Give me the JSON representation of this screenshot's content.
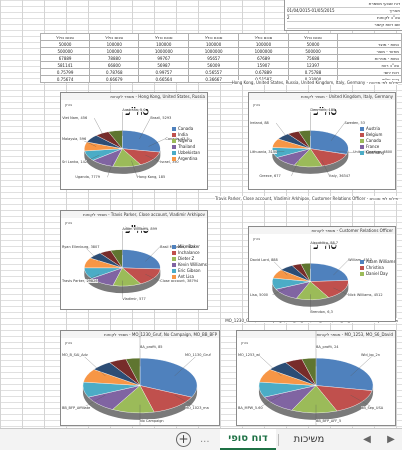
{
  "header": {
    "rows": [
      {
        "label": "דוח שבועי משמרת",
        "value": ""
      },
      {
        "label": "תאריך",
        "value": "01/04/2015-01/05/2015"
      },
      {
        "label": "סה\"כ לקוחות",
        "value": "2"
      },
      {
        "label": "שם רשת קישור",
        "value": ""
      }
    ]
  },
  "summary_table": {
    "columns": [
      "",
      "סכום כולל",
      "סכום כולל",
      "סכום כולל",
      "סכום כולל",
      "סכום כולל",
      "סכום כולל"
    ],
    "rows": [
      {
        "label": "כמות - מוצר",
        "values": [
          "50000",
          "100000",
          "100000",
          "100000",
          "100000",
          "50000"
        ]
      },
      {
        "label": "מחזור - מוצר",
        "values": [
          "500000",
          "1000000",
          "1000000",
          "1000000",
          "100000",
          "500000"
        ]
      },
      {
        "label": "כמות - מכירות",
        "values": [
          "75688",
          "67689",
          "95657",
          "99767",
          "78880",
          "67889"
        ]
      },
      {
        "label": "סה\"כ רווח",
        "values": [
          "12397",
          "15907",
          "56009",
          "56987",
          "66800",
          "581141"
        ]
      },
      {
        "label": "רווח יחסי",
        "values": [
          "0.75788",
          "0.67889",
          "0.56557",
          "0.99757",
          "0.78768",
          "0.75799"
        ]
      },
      {
        "label": "רווח גולמי",
        "values": [
          "0.33000",
          "0.51587",
          "0.36667",
          "0.66564",
          "0.66679",
          "0.75674"
        ]
      }
    ]
  },
  "sections": {
    "countries": "פילוח לפי מדינות - Hong Kong, United States, Russia, United Kingdom, Italy, Germany",
    "agents": "פילוח לפי סוכנים - Travis Parker, Close account, Vladimir Arkhipov, Customer Relations Officer",
    "campaigns": "פילוח לפי קמפיינים - MO_1230_Gruf, No Campaign, MO_BB_BFP, MO_1253, MO_S6_David"
  },
  "charts": [
    {
      "id": "c1",
      "title": "Hong Kong, United States, Russia - מספר לקוחות",
      "tag": "בוחן",
      "total": "סה\"כ",
      "legend": [
        "Canada",
        "India",
        "Nigeria",
        "Thailand",
        "Uzbekistan",
        "Argentina"
      ],
      "colors": [
        "#4f81bd",
        "#c0504d",
        "#9bbb59",
        "#8064a2",
        "#4bacc6",
        "#f79646",
        "#2c4d75",
        "#772c2a",
        "#5f7530"
      ],
      "slices": [
        28,
        14,
        12,
        10,
        9,
        8,
        7,
        6,
        6
      ],
      "callouts": [
        "Australia, 5,0",
        "Brazil, 5293",
        "Canada, 43,5",
        "Israel, 350",
        "Hong Kong, 185",
        "Uganda, 7779",
        "Sri Lanka, 142",
        "Malaysia, 596",
        "Viet Nam, 456"
      ]
    },
    {
      "id": "c2",
      "title": "United Kingdom, Italy, Germany - מספר לקוחות",
      "tag": "בוחן",
      "total": "סה\"כ",
      "legend": [
        "Austria",
        "Belgium",
        "Canada",
        "France",
        "Germany"
      ],
      "colors": [
        "#4f81bd",
        "#c0504d",
        "#9bbb59",
        "#8064a2",
        "#4bacc6",
        "#f79646",
        "#2c4d75",
        "#772c2a",
        "#5f7530"
      ],
      "slices": [
        30,
        15,
        12,
        10,
        9,
        8,
        6,
        5,
        5
      ],
      "callouts": [
        "Denmark, 185",
        "Sweden, 53",
        "United Kingdom, 6800",
        "Italy, 36347",
        "Greece, 677",
        "Lithuania, 3150",
        "Ireland, 88"
      ]
    },
    {
      "id": "c3",
      "title": "Travis Parker, Close account, Vladimir Arkhipov - מספר לקוחות",
      "tag": "בוחן",
      "total": "סה\"כ",
      "legend": [
        "Mike Baker",
        "Inchalance",
        "Dieter Z",
        "Kevin Williams",
        "Eric Gibson",
        "Ant Lisa"
      ],
      "colors": [
        "#4f81bd",
        "#c0504d",
        "#9bbb59",
        "#8064a2",
        "#4bacc6",
        "#f79646",
        "#2c4d75",
        "#772c2a",
        "#5f7530"
      ],
      "slices": [
        26,
        16,
        12,
        11,
        10,
        9,
        6,
        5,
        5
      ],
      "callouts": [
        "Adam Williams, 899",
        "Basil Moussin, 7620",
        "Close account, 38794",
        "Vladimir, 577",
        "Travis Parker, 29826",
        "Ryan Ellenburg, 3807"
      ]
    },
    {
      "id": "c4",
      "title": "Customer Relations Officer - מספר לקוחות",
      "tag": "בוחן",
      "total": "סה\"כ",
      "legend": [
        "Adam Williams",
        "Christina",
        "Daniel Day"
      ],
      "colors": [
        "#4f81bd",
        "#c0504d",
        "#9bbb59",
        "#8064a2",
        "#4bacc6",
        "#f79646",
        "#2c4d75",
        "#772c2a",
        "#5f7530"
      ],
      "slices": [
        24,
        18,
        14,
        12,
        10,
        8,
        6,
        4,
        4
      ],
      "callouts": [
        "Alexandra, 88.7",
        "William, 4512",
        "Nick Williams, 4512",
        "Brendon, 6,3",
        "Lisa, 5000",
        "David Lord, 888"
      ]
    },
    {
      "id": "c5",
      "title": "MO_1230_Gruf, No Campaign, MO_BB_BFP - מספר לקוחות",
      "tag": "בוחן",
      "total": "",
      "legend": [],
      "colors": [
        "#4f81bd",
        "#c0504d",
        "#9bbb59",
        "#8064a2",
        "#4bacc6",
        "#f79646",
        "#2c4d75",
        "#772c2a",
        "#5f7530"
      ],
      "slices": [
        32,
        14,
        12,
        10,
        9,
        8,
        6,
        5,
        4
      ],
      "callouts": [
        "BA_profit, 85",
        "MO_1130_Gruf",
        "MO_1023_ma",
        "No Campaign",
        "BB_BFP_Affiliate",
        "MO_B_SAI_Adv"
      ]
    },
    {
      "id": "c6",
      "title": "MO_1253, MO_S6_David - מספר לקוחות",
      "tag": "בוחן",
      "total": "",
      "legend": [],
      "colors": [
        "#4f81bd",
        "#c0504d",
        "#9bbb59",
        "#8064a2",
        "#4bacc6",
        "#f79646",
        "#2c4d75",
        "#772c2a",
        "#5f7530"
      ],
      "slices": [
        28,
        16,
        13,
        11,
        9,
        8,
        6,
        5,
        4
      ],
      "callouts": [
        "BA_profit, 24",
        "Wid_bp_2n",
        "BB_Sep_USA",
        "BB_BFP_AFF_5",
        "BA_MPW_5.60",
        "MO_1253_wl"
      ]
    }
  ],
  "tabs": {
    "active": "דוח סופי",
    "other": "משיכות",
    "add_symbol": "+",
    "prev_symbol": "◀",
    "next_symbol": "▶",
    "dots": "..."
  }
}
